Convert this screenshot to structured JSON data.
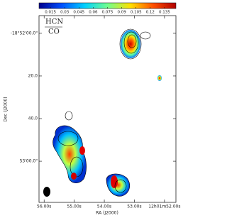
{
  "chart_data": {
    "type": "contour-map",
    "labels": [
      "HCN",
      "CO"
    ],
    "colorbar": {
      "clim": [
        0.003,
        0.147
      ],
      "ticks": [
        0.015,
        0.03,
        0.045,
        0.06,
        0.075,
        0.09,
        0.105,
        0.12,
        0.135
      ],
      "colors": [
        "#00008f",
        "#0050ff",
        "#00d0ff",
        "#70ff8f",
        "#ffe000",
        "#ff5000",
        "#b00000"
      ]
    },
    "x_label": "RA (J2000)",
    "y_label": "Dec (J2000)",
    "xlim": [
      56.17,
      51.62
    ],
    "xticks": [
      {
        "value": 56,
        "label": "56.00s"
      },
      {
        "value": 55,
        "label": "55.00s"
      },
      {
        "value": 54,
        "label": "54.00s"
      },
      {
        "value": 53,
        "label": "53.00s"
      },
      {
        "value": 52,
        "label": "12h01m52.00s"
      }
    ],
    "ylim": [
      -8.3,
      79.3
    ],
    "yticks": [
      {
        "value": 0,
        "label": "-18°52'00.0\""
      },
      {
        "value": 20,
        "label": "20.0"
      },
      {
        "value": 40,
        "label": "40.0"
      },
      {
        "value": 60,
        "label": "53'00.0\""
      }
    ]
  }
}
